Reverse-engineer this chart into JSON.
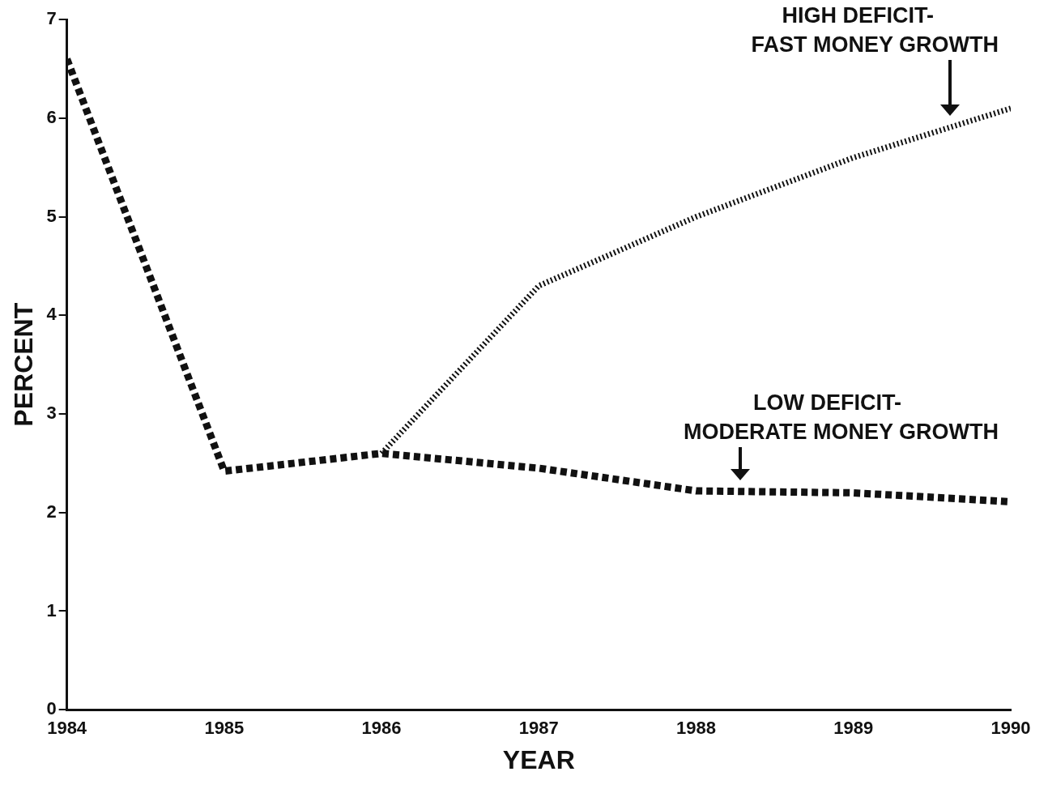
{
  "chart_data": {
    "type": "line",
    "xlabel": "YEAR",
    "ylabel": "PERCENT",
    "x": [
      1984,
      1985,
      1986,
      1987,
      1988,
      1989,
      1990
    ],
    "series": [
      {
        "name": "HIGH DEFICIT-FAST MONEY GROWTH",
        "color": "#111111",
        "line_style": "dotted",
        "values": [
          null,
          null,
          2.6,
          4.3,
          5.0,
          5.6,
          6.1
        ]
      },
      {
        "name": "LOW DEFICIT-MODERATE MONEY GROWTH",
        "color": "#111111",
        "line_style": "dotted",
        "values": [
          6.6,
          2.42,
          2.6,
          2.45,
          2.22,
          2.2,
          2.11
        ]
      }
    ],
    "xlim": [
      1984,
      1990
    ],
    "xticks": [
      1984,
      1985,
      1986,
      1987,
      1988,
      1989,
      1990
    ],
    "ylim": [
      0,
      7
    ],
    "yticks": [
      0,
      1,
      2,
      3,
      4,
      5,
      6,
      7
    ],
    "grid": false,
    "legend": false,
    "marker": "none"
  }
}
